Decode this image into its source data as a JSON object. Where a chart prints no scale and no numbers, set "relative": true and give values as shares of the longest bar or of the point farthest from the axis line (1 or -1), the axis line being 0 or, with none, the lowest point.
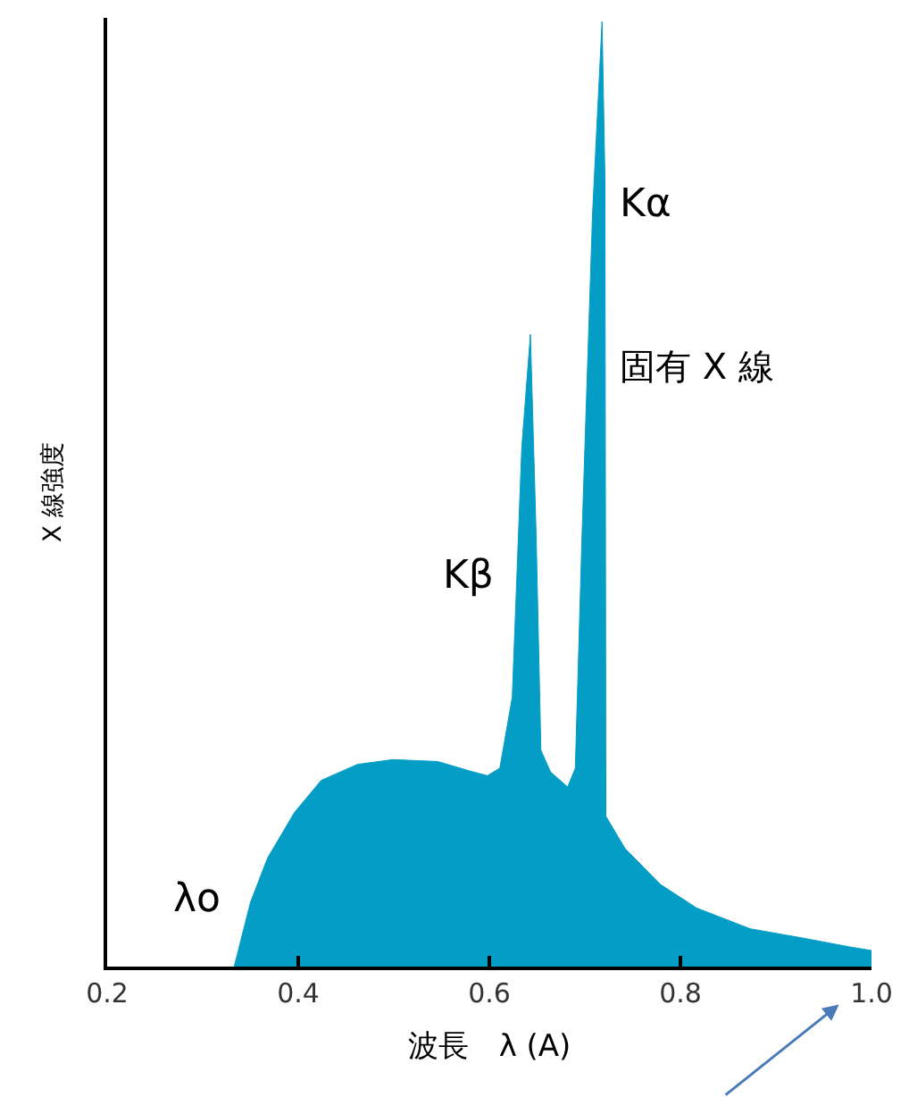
{
  "chart_data": {
    "type": "area",
    "relative": true,
    "xlabel": "波長　λ (A)",
    "ylabel": "X 線強度",
    "xlim": [
      0.2,
      1.0
    ],
    "xticks": [
      0.2,
      0.4,
      0.6,
      0.8,
      {
        "value": 1.0,
        "label": "1.0"
      }
    ],
    "x": [
      0.333,
      0.35,
      0.368,
      0.396,
      0.424,
      0.462,
      0.499,
      0.546,
      0.583,
      0.598,
      0.611,
      0.624,
      0.634,
      0.643,
      0.649,
      0.654,
      0.664,
      0.682,
      0.69,
      0.697,
      0.708,
      0.718,
      0.721,
      0.722,
      0.742,
      0.779,
      0.817,
      0.873,
      0.929,
      0.976,
      1.0
    ],
    "series": [
      {
        "color": "#049dc6",
        "values": [
          0,
          0.068,
          0.115,
          0.163,
          0.197,
          0.214,
          0.219,
          0.217,
          0.206,
          0.202,
          0.21,
          0.285,
          0.55,
          0.669,
          0.456,
          0.229,
          0.206,
          0.19,
          0.21,
          0.456,
          0.796,
          1.0,
          0.834,
          0.159,
          0.125,
          0.087,
          0.062,
          0.04,
          0.03,
          0.021,
          0.017
        ]
      }
    ],
    "annotations": [
      "Kα",
      "固有 X 線",
      "Kβ",
      "λo"
    ]
  }
}
